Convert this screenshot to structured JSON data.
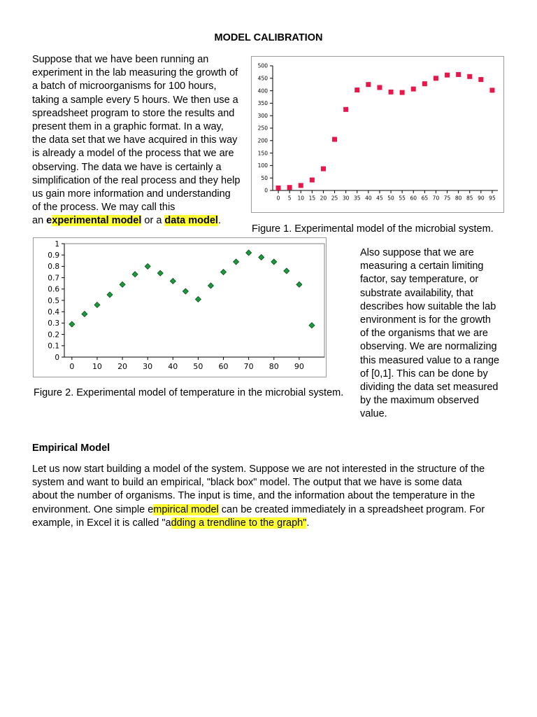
{
  "title": "MODEL CALIBRATION",
  "intro": {
    "lines": [
      "Suppose that we have been running an",
      "experiment in the lab measuring the growth of",
      "a batch of microorganisms for 100 hours,",
      "taking a sample every 5 hours. We then use a",
      "spreadsheet program to store the results and",
      "present them in a graphic format. In a way,",
      "the data set that we have acquired in this way",
      "is already a model of the process that we are",
      "observing. The data we have is certainly a",
      "simplification of the real process and they help",
      "us gain more information and understanding",
      "of the process. We may call this"
    ],
    "last_prefix": "an ",
    "term1_first": "e",
    "term1_rest": "xperimental model",
    "connector": " or a ",
    "term2": "data model",
    "period": "."
  },
  "figure1": {
    "caption": "Figure 1. Experimental model of the microbial system."
  },
  "figure2": {
    "caption": "Figure 2. Experimental model of temperature in the microbial system."
  },
  "side_text": {
    "lines": [
      "Also suppose that we are",
      "measuring a certain limiting",
      "factor, say temperature, or",
      "substrate availability, that",
      "describes how suitable the lab",
      "environment is for the growth",
      "of the organisms that we are",
      "observing. We are normalizing",
      "this measured value to a range",
      "of [0,1]. This can be done by",
      "dividing the data set measured",
      "by the maximum observed",
      "value."
    ]
  },
  "empirical": {
    "heading": "Empirical Model",
    "lines": [
      "Let us now start building a model of the system. Suppose we are not interested in the structure of the",
      "system and want to build an empirical, \"black box\" model. The output that we have is some data",
      "about the number of organisms. The input is time, and the information about the temperature in the"
    ],
    "line4_prefix": "environment. One simple e",
    "line4_hl": "mpirical model",
    "line4_suffix": " can be created immediately in a spreadsheet program. For",
    "line5_prefix": "example, in Excel it is called \"a",
    "line5_hl": "dding a trendline to the graph\"",
    "line5_suffix": "."
  },
  "chart_data": [
    {
      "type": "scatter",
      "title": "",
      "xlabel": "",
      "ylabel": "",
      "x": [
        0,
        5,
        10,
        15,
        20,
        25,
        30,
        35,
        40,
        45,
        50,
        55,
        60,
        65,
        70,
        75,
        80,
        85,
        90,
        95
      ],
      "y": [
        10,
        12,
        20,
        42,
        87,
        205,
        325,
        403,
        425,
        413,
        395,
        393,
        407,
        428,
        450,
        463,
        465,
        457,
        445,
        402
      ],
      "xlim": [
        -2.5,
        97.5
      ],
      "ylim": [
        0,
        500
      ],
      "xticks": [
        "0",
        "5",
        "10",
        "15",
        "20",
        "25",
        "30",
        "35",
        "40",
        "45",
        "50",
        "55",
        "60",
        "65",
        "70",
        "75",
        "80",
        "85",
        "90",
        "95"
      ],
      "yticks": [
        "0",
        "50",
        "100",
        "150",
        "200",
        "250",
        "300",
        "350",
        "400",
        "450",
        "500"
      ],
      "grid": false,
      "marker": "square",
      "color": "#e8174a"
    },
    {
      "type": "scatter",
      "title": "",
      "xlabel": "",
      "ylabel": "",
      "x": [
        0,
        5,
        10,
        15,
        20,
        25,
        30,
        35,
        40,
        45,
        50,
        55,
        60,
        65,
        70,
        75,
        80,
        85,
        90,
        95
      ],
      "y": [
        0.29,
        0.38,
        0.46,
        0.55,
        0.64,
        0.73,
        0.8,
        0.74,
        0.67,
        0.58,
        0.51,
        0.63,
        0.75,
        0.84,
        0.92,
        0.88,
        0.84,
        0.76,
        0.64,
        0.28
      ],
      "xlim": [
        -3,
        100
      ],
      "ylim": [
        0,
        1
      ],
      "xticks": [
        "0",
        "10",
        "20",
        "30",
        "40",
        "50",
        "60",
        "70",
        "80",
        "90"
      ],
      "yticks": [
        "0",
        "0.1",
        "0.2",
        "0.3",
        "0.4",
        "0.5",
        "0.6",
        "0.7",
        "0.8",
        "0.9",
        "1"
      ],
      "grid": false,
      "marker": "diamond",
      "color": "#1a9a3a"
    }
  ]
}
